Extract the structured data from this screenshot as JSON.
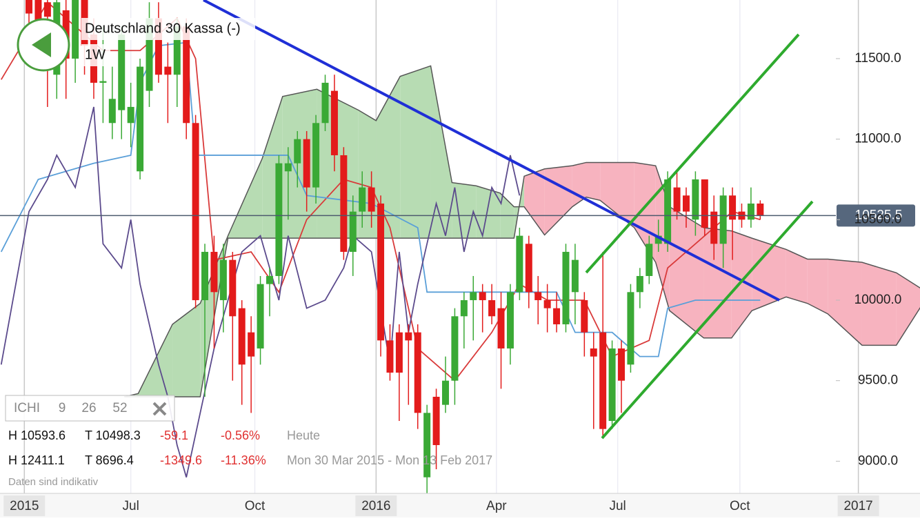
{
  "chart_data": {
    "type": "candlestick",
    "title": "Deutschland 30 Kassa (-)",
    "subtitle": "1W",
    "x": [
      0,
      1,
      2,
      3,
      4,
      5,
      6,
      7,
      8,
      9,
      10,
      11,
      12,
      13,
      14,
      15,
      16,
      17,
      18,
      19,
      20,
      21,
      22,
      23,
      24,
      25,
      26,
      27,
      28,
      29,
      30,
      31,
      32,
      33,
      34,
      35,
      36,
      37,
      38,
      39,
      40,
      41,
      42,
      43,
      44,
      45,
      46,
      47,
      48,
      49,
      50,
      51,
      52,
      53,
      54,
      55,
      56,
      57,
      58,
      59,
      60,
      61,
      62,
      63,
      64,
      65,
      66,
      67,
      68,
      69,
      70,
      71,
      72,
      73,
      74,
      75,
      76,
      77,
      78,
      79
    ],
    "open": [
      11950,
      11900,
      11850,
      11400,
      11800,
      11500,
      11950,
      11650,
      11350,
      11100,
      11180,
      11100,
      10800,
      11300,
      11750,
      11450,
      11400,
      11700,
      11100,
      10000,
      10300,
      10000,
      10250,
      9950,
      9800,
      9700,
      10100,
      10150,
      10800,
      10850,
      11000,
      10700,
      11100,
      11300,
      10900,
      10300,
      10550,
      10700,
      10600,
      9750,
      9800,
      9800,
      9800,
      8900,
      9400,
      9350,
      9500,
      9900,
      10000,
      10050,
      10000,
      9950,
      9700,
      10050,
      10350,
      10050,
      10000,
      9950,
      9850,
      10050,
      10000,
      9700,
      9800,
      9250,
      9700,
      9600,
      10050,
      10150,
      10350,
      10350,
      10700,
      10650,
      10500,
      10750,
      10550,
      10350,
      10650,
      10550,
      10500,
      10600
    ],
    "high": [
      12100,
      12050,
      11950,
      11950,
      11900,
      12050,
      12100,
      11750,
      11700,
      11450,
      11700,
      11350,
      11500,
      11850,
      11850,
      11600,
      11750,
      11750,
      11150,
      10350,
      10400,
      10350,
      10300,
      10000,
      9900,
      10150,
      10200,
      10900,
      10950,
      11050,
      11050,
      11150,
      11400,
      11400,
      10950,
      10650,
      10800,
      10800,
      10650,
      9850,
      9850,
      9850,
      9850,
      9350,
      9450,
      9650,
      9950,
      10050,
      10150,
      10100,
      10100,
      10050,
      10100,
      10450,
      10400,
      10150,
      10100,
      10050,
      10350,
      10350,
      10050,
      9800,
      10300,
      9750,
      9750,
      10100,
      10200,
      10400,
      10500,
      10800,
      10800,
      10700,
      10800,
      10750,
      10650,
      10700,
      10700,
      10600,
      10700,
      10620
    ],
    "low": [
      11650,
      11550,
      11200,
      11250,
      11250,
      11350,
      11400,
      11250,
      11100,
      11000,
      11000,
      10950,
      10750,
      11200,
      11350,
      11100,
      11200,
      11000,
      9950,
      9400,
      9700,
      9800,
      9500,
      9350,
      9300,
      9600,
      9900,
      10100,
      10500,
      10700,
      10550,
      10600,
      11050,
      10800,
      10250,
      10150,
      10450,
      10450,
      9650,
      9500,
      9250,
      9350,
      9200,
      8800,
      8950,
      9300,
      9350,
      9700,
      9750,
      9800,
      9850,
      9450,
      9600,
      10000,
      9950,
      9850,
      9800,
      9800,
      9800,
      9850,
      9650,
      9200,
      9150,
      9200,
      9300,
      9550,
      9950,
      10100,
      10300,
      10300,
      10500,
      10450,
      10400,
      10400,
      10250,
      10200,
      10250,
      10450,
      10450,
      10500
    ],
    "close": [
      11780,
      11700,
      11760,
      11850,
      11500,
      11950,
      11580,
      11350,
      11360,
      11250,
      11650,
      11200,
      11450,
      11750,
      11400,
      11400,
      11700,
      11100,
      10000,
      10300,
      10050,
      10250,
      9900,
      9600,
      9650,
      10100,
      10150,
      10850,
      10850,
      11000,
      10700,
      11100,
      11350,
      10900,
      10300,
      10550,
      10700,
      10550,
      9750,
      9550,
      9550,
      9750,
      9300,
      9300,
      9100,
      9500,
      9900,
      10000,
      10050,
      10000,
      9900,
      9700,
      10050,
      10400,
      10050,
      10000,
      9950,
      9850,
      10300,
      10250,
      9800,
      9650,
      9200,
      9700,
      9500,
      10050,
      10150,
      10350,
      10400,
      10750,
      10550,
      10550,
      10750,
      10450,
      10350,
      10650,
      10500,
      10500,
      10600,
      10525.5
    ],
    "up_color": "#3aa935",
    "down_color": "#e31b1b",
    "lines": [
      {
        "color": "#d93a3a",
        "x": [
          -3,
          2,
          8,
          12,
          16,
          18,
          20,
          24,
          27,
          30,
          34,
          37,
          39,
          42,
          46,
          50,
          53,
          56,
          60,
          63,
          67,
          69,
          72,
          76,
          79
        ],
        "values": [
          11370,
          11850,
          11550,
          11550,
          11750,
          11500,
          10250,
          10300,
          10050,
          10500,
          10750,
          10700,
          10450,
          9700,
          9500,
          9800,
          10100,
          10000,
          10000,
          9650,
          9750,
          10200,
          10350,
          10550,
          10500
        ]
      },
      {
        "color": "#5a9fd8",
        "x": [
          -3,
          1,
          7,
          11,
          12,
          14,
          17,
          18,
          28,
          30,
          37,
          42,
          43,
          57,
          59,
          63,
          66,
          68,
          69,
          72,
          79
        ],
        "values": [
          10300,
          10750,
          10850,
          10900,
          11350,
          11580,
          11600,
          10900,
          10900,
          10650,
          10600,
          10450,
          10050,
          10050,
          9800,
          9800,
          9650,
          9650,
          9950,
          10000,
          10000
        ]
      },
      {
        "color": "#5b4a8c",
        "x": [
          -3,
          0,
          2,
          3,
          5,
          7,
          8,
          10,
          11,
          12,
          14,
          15,
          16,
          17,
          20,
          23,
          25,
          27,
          28,
          30,
          32,
          34,
          35,
          37,
          39,
          40,
          41,
          42,
          43,
          44,
          45,
          46,
          47,
          48,
          49,
          50,
          51,
          52,
          53
        ],
        "values": [
          9600,
          10550,
          10750,
          10900,
          10700,
          11200,
          10350,
          10200,
          10500,
          10100,
          9600,
          9400,
          9100,
          8900,
          9700,
          10300,
          10400,
          10000,
          10400,
          9950,
          10000,
          10200,
          10400,
          10300,
          9600,
          10300,
          9800,
          10100,
          10350,
          10600,
          10400,
          10700,
          10300,
          10550,
          10400,
          10700,
          10600,
          10900,
          10650
        ]
      }
    ],
    "cloud": {
      "x": [
        10.3,
        11.8,
        15.5,
        18.5,
        21.5,
        25.2,
        27.4,
        31.1,
        35.6,
        37.5,
        40.1,
        43.4,
        45.7,
        48.3,
        50.9,
        52.4,
        53.5,
        55.7,
        58.7,
        60.2,
        61.7,
        65.4,
        67.7,
        69.2,
        72.9,
        75.9,
        78.1,
        81.8,
        84.1,
        86.3,
        90.0,
        93.7,
        96.3
      ],
      "span_a": [
        9400,
        9420,
        9850,
        9980,
        10400,
        10880,
        11265,
        11310,
        11180,
        11115,
        11390,
        11455,
        10730,
        10710,
        10665,
        10580,
        10580,
        10405,
        10580,
        10640,
        10620,
        10450,
        10235,
        9935,
        9765,
        9765,
        9935,
        10020,
        9980,
        9915,
        9720,
        9720,
        9955
      ],
      "span_b": [
        9400,
        9400,
        9400,
        9400,
        10385,
        10385,
        10385,
        10385,
        10385,
        10385,
        10385,
        10385,
        10385,
        10385,
        10385,
        10385,
        10770,
        10815,
        10835,
        10855,
        10855,
        10855,
        10835,
        10580,
        10450,
        10430,
        10385,
        10315,
        10255,
        10255,
        10235,
        10170,
        10075
      ],
      "up_color": "#b7dcb3",
      "down_color": "#f7b3bf"
    },
    "last": 10525.5,
    "xlim": [
      -3.13,
      96.26
    ],
    "ylim": [
      8800,
      11864
    ],
    "xticks": [
      {
        "value": -0.5,
        "label": "2015"
      },
      {
        "value": 11,
        "label": "Jul"
      },
      {
        "value": 24.4,
        "label": "Oct"
      },
      {
        "value": 37.5,
        "label": "2016"
      },
      {
        "value": 50.5,
        "label": "Apr"
      },
      {
        "value": 63.6,
        "label": "Jul"
      },
      {
        "value": 76.8,
        "label": "Oct"
      },
      {
        "value": 89.6,
        "label": "2017"
      }
    ],
    "yticks": [
      {
        "value": 9000,
        "label": "9000.0"
      },
      {
        "value": 9500,
        "label": "9500.0"
      },
      {
        "value": 10000,
        "label": "10000.0"
      },
      {
        "value": 10500,
        "label": "10500.0"
      },
      {
        "value": 11000,
        "label": "11000.0"
      },
      {
        "value": 11500,
        "label": "11500.0"
      }
    ],
    "grid": true
  },
  "panel": {
    "indicator": "ICHI",
    "params": [
      "9",
      "26",
      "52"
    ],
    "rows": [
      [
        "H 10593.6",
        "T 10498.3",
        "-59.1",
        "-0.56%",
        "Heute"
      ],
      [
        "H 12411.1",
        "T 8696.4",
        "-1349.6",
        "-11.36%",
        "Mon 30 Mar 2015 - Mon 13 Feb 2017"
      ]
    ],
    "note": "Daten sind indikativ"
  }
}
